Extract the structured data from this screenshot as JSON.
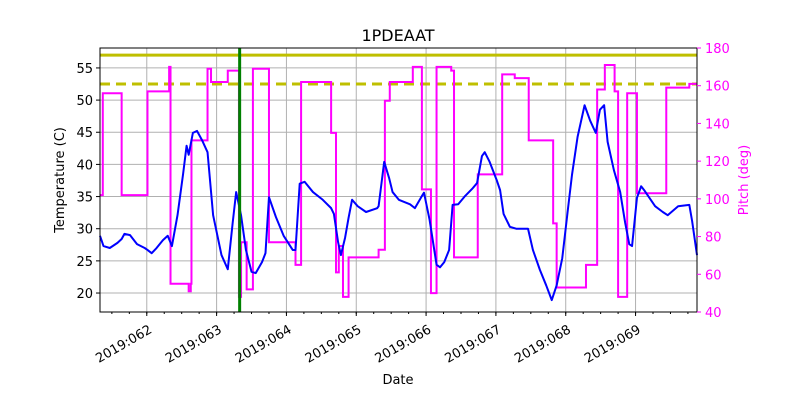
{
  "chart_data": {
    "type": "line",
    "title": "1PDEAAT",
    "xlabel": "Date",
    "ylabel": "Temperature (C)",
    "y2label": "Pitch (deg)",
    "xlim": [
      61.33,
      69.88
    ],
    "ylim": [
      17.05,
      58.1
    ],
    "y2lim": [
      40,
      180
    ],
    "grid": true,
    "x_tick_values": [
      62,
      63,
      64,
      65,
      66,
      67,
      68,
      69
    ],
    "x_tick_labels": [
      "2019:062",
      "2019:063",
      "2019:064",
      "2019:065",
      "2019:066",
      "2019:067",
      "2019:068",
      "2019:069"
    ],
    "y_ticks": [
      20,
      25,
      30,
      35,
      40,
      45,
      50,
      55
    ],
    "y2_ticks": [
      40,
      60,
      80,
      100,
      120,
      140,
      160,
      180
    ],
    "colors": {
      "temperature": "#0000ff",
      "pitch": "#ff00ff",
      "limits": "#bfbf00",
      "marker": "#008000",
      "y2axis": "#ff00ff"
    },
    "temperature": [
      [
        61.33,
        28.9
      ],
      [
        61.38,
        27.3
      ],
      [
        61.47,
        27.0
      ],
      [
        61.58,
        27.8
      ],
      [
        61.64,
        28.4
      ],
      [
        61.68,
        29.2
      ],
      [
        61.76,
        29.0
      ],
      [
        61.86,
        27.6
      ],
      [
        61.97,
        27.0
      ],
      [
        62.01,
        26.7
      ],
      [
        62.07,
        26.2
      ],
      [
        62.14,
        27.0
      ],
      [
        62.23,
        28.2
      ],
      [
        62.3,
        28.9
      ],
      [
        62.36,
        27.3
      ],
      [
        62.44,
        32.1
      ],
      [
        62.52,
        38.5
      ],
      [
        62.57,
        42.9
      ],
      [
        62.6,
        41.5
      ],
      [
        62.66,
        44.9
      ],
      [
        62.72,
        45.2
      ],
      [
        62.79,
        43.8
      ],
      [
        62.87,
        41.9
      ],
      [
        62.95,
        32.1
      ],
      [
        63.07,
        25.9
      ],
      [
        63.16,
        23.7
      ],
      [
        63.23,
        30.9
      ],
      [
        63.28,
        35.7
      ],
      [
        63.35,
        32.1
      ],
      [
        63.42,
        26.7
      ],
      [
        63.5,
        23.3
      ],
      [
        63.56,
        23.1
      ],
      [
        63.65,
        24.8
      ],
      [
        63.7,
        26.2
      ],
      [
        63.75,
        34.9
      ],
      [
        63.85,
        31.8
      ],
      [
        63.96,
        28.9
      ],
      [
        64.09,
        26.7
      ],
      [
        64.13,
        26.7
      ],
      [
        64.19,
        37.0
      ],
      [
        64.26,
        37.3
      ],
      [
        64.38,
        35.7
      ],
      [
        64.52,
        34.5
      ],
      [
        64.64,
        33.2
      ],
      [
        64.68,
        32.3
      ],
      [
        64.74,
        27.9
      ],
      [
        64.78,
        25.9
      ],
      [
        64.84,
        28.6
      ],
      [
        64.89,
        31.7
      ],
      [
        64.94,
        34.5
      ],
      [
        65.02,
        33.5
      ],
      [
        65.14,
        32.6
      ],
      [
        65.3,
        33.2
      ],
      [
        65.32,
        33.5
      ],
      [
        65.4,
        40.4
      ],
      [
        65.47,
        37.9
      ],
      [
        65.52,
        35.7
      ],
      [
        65.61,
        34.5
      ],
      [
        65.77,
        33.8
      ],
      [
        65.84,
        33.2
      ],
      [
        65.93,
        34.9
      ],
      [
        65.97,
        35.6
      ],
      [
        66.05,
        31.4
      ],
      [
        66.15,
        24.4
      ],
      [
        66.2,
        24.0
      ],
      [
        66.26,
        24.8
      ],
      [
        66.33,
        26.7
      ],
      [
        66.38,
        33.7
      ],
      [
        66.46,
        33.8
      ],
      [
        66.56,
        35.1
      ],
      [
        66.66,
        36.2
      ],
      [
        66.73,
        37.1
      ],
      [
        66.8,
        41.3
      ],
      [
        66.84,
        41.9
      ],
      [
        66.91,
        40.4
      ],
      [
        67.01,
        37.6
      ],
      [
        67.06,
        36.0
      ],
      [
        67.11,
        32.3
      ],
      [
        67.2,
        30.3
      ],
      [
        67.29,
        30.0
      ],
      [
        67.46,
        30.0
      ],
      [
        67.53,
        26.7
      ],
      [
        67.63,
        23.6
      ],
      [
        67.72,
        21.2
      ],
      [
        67.8,
        18.9
      ],
      [
        67.87,
        21.2
      ],
      [
        67.95,
        25.4
      ],
      [
        68.03,
        32.9
      ],
      [
        68.09,
        38.4
      ],
      [
        68.17,
        44.3
      ],
      [
        68.27,
        49.2
      ],
      [
        68.35,
        46.8
      ],
      [
        68.43,
        44.9
      ],
      [
        68.49,
        48.5
      ],
      [
        68.55,
        49.2
      ],
      [
        68.6,
        43.5
      ],
      [
        68.69,
        39.1
      ],
      [
        68.78,
        35.7
      ],
      [
        68.85,
        31.0
      ],
      [
        68.91,
        27.6
      ],
      [
        68.95,
        27.3
      ],
      [
        69.02,
        34.8
      ],
      [
        69.08,
        36.6
      ],
      [
        69.13,
        35.9
      ],
      [
        69.28,
        33.5
      ],
      [
        69.39,
        32.6
      ],
      [
        69.46,
        32.1
      ],
      [
        69.61,
        33.5
      ],
      [
        69.77,
        33.7
      ],
      [
        69.81,
        31.2
      ],
      [
        69.88,
        25.9
      ]
    ],
    "pitch_steps": [
      [
        61.33,
        102
      ],
      [
        61.37,
        156
      ],
      [
        61.64,
        102
      ],
      [
        62.01,
        157
      ],
      [
        62.32,
        170
      ],
      [
        62.34,
        55
      ],
      [
        62.6,
        51
      ],
      [
        62.63,
        55
      ],
      [
        62.64,
        131
      ],
      [
        62.87,
        169
      ],
      [
        62.92,
        162
      ],
      [
        63.16,
        168
      ],
      [
        63.32,
        48
      ],
      [
        63.35,
        77
      ],
      [
        63.43,
        52
      ],
      [
        63.52,
        169
      ],
      [
        63.75,
        77
      ],
      [
        64.13,
        65
      ],
      [
        64.21,
        162
      ],
      [
        64.64,
        135
      ],
      [
        64.71,
        61
      ],
      [
        64.75,
        75
      ],
      [
        64.81,
        48
      ],
      [
        64.89,
        69
      ],
      [
        65.32,
        73
      ],
      [
        65.41,
        152
      ],
      [
        65.48,
        162
      ],
      [
        65.81,
        170
      ],
      [
        65.94,
        105
      ],
      [
        66.07,
        50
      ],
      [
        66.15,
        170
      ],
      [
        66.36,
        168
      ],
      [
        66.4,
        69
      ],
      [
        66.74,
        113
      ],
      [
        67.09,
        166
      ],
      [
        67.27,
        164
      ],
      [
        67.47,
        131
      ],
      [
        67.82,
        87
      ],
      [
        67.87,
        53
      ],
      [
        68.29,
        65
      ],
      [
        68.45,
        158
      ],
      [
        68.56,
        171
      ],
      [
        68.7,
        157
      ],
      [
        68.75,
        48
      ],
      [
        68.88,
        156
      ],
      [
        69.02,
        103
      ],
      [
        69.44,
        159
      ],
      [
        69.77,
        161
      ],
      [
        69.88,
        161
      ]
    ],
    "limit_solid": 57.0,
    "limit_dashed": 52.5,
    "marker_date": 63.33
  }
}
